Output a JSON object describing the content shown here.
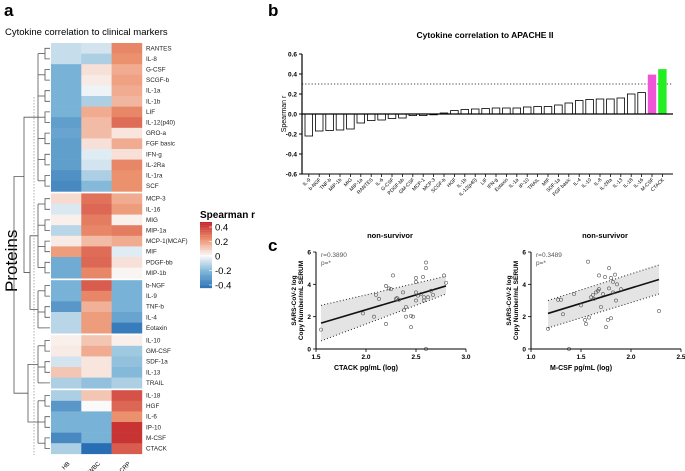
{
  "panels": {
    "a": "a",
    "b": "b",
    "c": "c"
  },
  "heatmap": {
    "title": "Cytokine correlation to clinical markers",
    "ylabel": "Proteins",
    "columns": [
      "HB",
      "WBC",
      "CRP"
    ],
    "legend_title": "Spearman r",
    "legend_ticks": [
      "0.4",
      "0.2",
      "0",
      "-0.2",
      "-0.4"
    ],
    "legend_values": [
      0.4,
      0.2,
      0,
      -0.2,
      -0.4
    ],
    "range": [
      -0.4,
      0.4
    ],
    "group_sizes": [
      14,
      8,
      5,
      5,
      6
    ],
    "rows": [
      {
        "name": "RANTES",
        "values": [
          -0.08,
          -0.06,
          0.22
        ]
      },
      {
        "name": "IL-8",
        "values": [
          -0.08,
          -0.12,
          0.2
        ]
      },
      {
        "name": "G-CSF",
        "values": [
          -0.2,
          0.05,
          0.15
        ]
      },
      {
        "name": "SCGF-b",
        "values": [
          -0.2,
          0.03,
          0.17
        ]
      },
      {
        "name": "IL-1a",
        "values": [
          -0.2,
          -0.02,
          0.15
        ]
      },
      {
        "name": "IL-1b",
        "values": [
          -0.2,
          -0.12,
          0.13
        ]
      },
      {
        "name": "LIF",
        "values": [
          -0.2,
          0.15,
          0.22
        ]
      },
      {
        "name": "IL-12(p40)",
        "values": [
          -0.26,
          0.12,
          0.27
        ]
      },
      {
        "name": "GRO-a",
        "values": [
          -0.24,
          0.12,
          0.04
        ]
      },
      {
        "name": "FGF basic",
        "values": [
          -0.26,
          0.05,
          0.15
        ]
      },
      {
        "name": "IFN-g",
        "values": [
          -0.26,
          -0.04,
          0.05
        ]
      },
      {
        "name": "IL-2Ra",
        "values": [
          -0.26,
          -0.06,
          0.22
        ]
      },
      {
        "name": "IL-1ra",
        "values": [
          -0.3,
          -0.12,
          0.2
        ]
      },
      {
        "name": "SCF",
        "values": [
          -0.32,
          -0.18,
          0.2
        ]
      },
      {
        "name": "MCP-3",
        "values": [
          0.06,
          0.26,
          0.15
        ]
      },
      {
        "name": "IL-16",
        "values": [
          -0.05,
          0.28,
          0.18
        ]
      },
      {
        "name": "MIG",
        "values": [
          0.02,
          0.24,
          0.02
        ]
      },
      {
        "name": "MIP-1a",
        "values": [
          -0.1,
          0.22,
          0.24
        ]
      },
      {
        "name": "MCP-1(MCAF)",
        "values": [
          0.03,
          0.12,
          0.15
        ]
      },
      {
        "name": "MIF",
        "values": [
          0.18,
          0.27,
          -0.04
        ]
      },
      {
        "name": "PDGF-bb",
        "values": [
          -0.22,
          0.28,
          0.05
        ]
      },
      {
        "name": "MIP-1b",
        "values": [
          -0.22,
          0.22,
          0.01
        ]
      },
      {
        "name": "b-NGF",
        "values": [
          -0.2,
          0.3,
          -0.2
        ]
      },
      {
        "name": "IL-9",
        "values": [
          -0.2,
          0.22,
          -0.2
        ]
      },
      {
        "name": "TNF-b",
        "values": [
          -0.28,
          0.14,
          -0.2
        ]
      },
      {
        "name": "IL-4",
        "values": [
          -0.1,
          0.18,
          -0.24
        ]
      },
      {
        "name": "Eotaxin",
        "values": [
          -0.1,
          0.18,
          -0.36
        ]
      },
      {
        "name": "IL-10",
        "values": [
          0.02,
          0.1,
          0.02
        ]
      },
      {
        "name": "GM-CSF",
        "values": [
          0.03,
          0.15,
          -0.14
        ]
      },
      {
        "name": "SDF-1a",
        "values": [
          -0.06,
          0.04,
          -0.16
        ]
      },
      {
        "name": "IL-13",
        "values": [
          0.1,
          0.04,
          -0.18
        ]
      },
      {
        "name": "TRAIL",
        "values": [
          -0.12,
          -0.16,
          -0.12
        ]
      },
      {
        "name": "IL-18",
        "values": [
          -0.12,
          0.1,
          0.32
        ]
      },
      {
        "name": "HGF",
        "values": [
          -0.28,
          0.0,
          0.28
        ]
      },
      {
        "name": "IL-6",
        "values": [
          -0.2,
          -0.2,
          0.2
        ]
      },
      {
        "name": "IP-10",
        "values": [
          -0.2,
          -0.2,
          0.38
        ]
      },
      {
        "name": "M-CSF",
        "values": [
          -0.32,
          -0.2,
          0.38
        ]
      },
      {
        "name": "CTACK",
        "values": [
          -0.12,
          -0.4,
          0.3
        ]
      }
    ]
  },
  "chart_data": [
    {
      "type": "bar",
      "title": "Cytokine correlation to APACHE II",
      "ylabel": "Spearman r",
      "ylim": [
        -0.6,
        0.6
      ],
      "yticks": [
        "0.6",
        "0.4",
        "0.2",
        "0.0",
        "-0.2",
        "-0.4",
        "-0.6"
      ],
      "ytick_values": [
        0.6,
        0.4,
        0.2,
        0,
        -0.2,
        -0.4,
        -0.6
      ],
      "threshold": 0.3,
      "categories": [
        "IL-9",
        "b-NGF",
        "TNF-b",
        "MIP-1b",
        "MIG",
        "MIP-1a",
        "RANTES",
        "IL-6",
        "G-CSF",
        "PDGF-bb",
        "GM-CSF",
        "MCP-1",
        "MCP-3",
        "SCGF-b",
        "HGF",
        "IL-1b",
        "IL-12(p40)",
        "LIF",
        "IFN-g",
        "Eotaxin",
        "IL-1a",
        "IP-10",
        "TRAIL",
        "MIF",
        "SDF-1a",
        "FGF basic",
        "IL-4",
        "IL-10",
        "IL-8",
        "IL-2Ra",
        "IL-13",
        "IL-18",
        "IL-16",
        "M-CSF",
        "CTACK"
      ],
      "values": [
        -0.22,
        -0.17,
        -0.165,
        -0.16,
        -0.15,
        -0.09,
        -0.065,
        -0.06,
        -0.045,
        -0.04,
        -0.015,
        -0.015,
        -0.005,
        0.01,
        0.035,
        0.045,
        0.05,
        0.055,
        0.06,
        0.06,
        0.06,
        0.07,
        0.075,
        0.075,
        0.09,
        0.11,
        0.135,
        0.145,
        0.15,
        0.15,
        0.16,
        0.2,
        0.215,
        0.39,
        0.445
      ],
      "highlight": {
        "M-CSF": "#f055d8",
        "CTACK": "#22ee22"
      }
    },
    {
      "type": "scatter",
      "title": "non-survivor",
      "xlabel": "CTACK pg/mL (log)",
      "ylabel": [
        "SARS-CoV-2 log",
        "Copy Number/mL SERUM"
      ],
      "annotation": [
        "r=0.3890",
        "p=*"
      ],
      "xlim": [
        1.5,
        3.0
      ],
      "ylim": [
        0,
        6
      ],
      "xticks": [
        "1.5",
        "2.0",
        "2.5",
        "3.0"
      ],
      "xtick_values": [
        1.5,
        2.0,
        2.5,
        3.0
      ],
      "yticks": [
        "0",
        "2",
        "4",
        "6"
      ],
      "ytick_values": [
        0,
        2,
        4,
        6
      ],
      "fit": {
        "x": [
          1.55,
          2.8
        ],
        "y": [
          1.6,
          3.9
        ]
      },
      "ci_lower": {
        "x": [
          1.55,
          2.8
        ],
        "y": [
          0.5,
          3.4
        ]
      },
      "ci_upper": {
        "x": [
          1.55,
          2.8
        ],
        "y": [
          2.7,
          4.5
        ]
      },
      "points": [
        [
          1.55,
          1.2
        ],
        [
          1.97,
          2.2
        ],
        [
          2.08,
          2.0
        ],
        [
          2.1,
          3.35
        ],
        [
          2.13,
          3.1
        ],
        [
          2.2,
          1.55
        ],
        [
          2.2,
          3.9
        ],
        [
          2.23,
          3.75
        ],
        [
          2.25,
          3.7
        ],
        [
          2.27,
          4.55
        ],
        [
          2.3,
          3.1
        ],
        [
          2.31,
          3.15
        ],
        [
          2.33,
          3.05
        ],
        [
          2.37,
          3.5
        ],
        [
          2.38,
          2.4
        ],
        [
          2.4,
          2.6
        ],
        [
          2.4,
          2.0
        ],
        [
          2.45,
          2.05
        ],
        [
          2.47,
          2.0
        ],
        [
          2.45,
          1.35
        ],
        [
          2.5,
          4.15
        ],
        [
          2.5,
          4.4
        ],
        [
          2.5,
          3.0
        ],
        [
          2.5,
          3.5
        ],
        [
          2.52,
          3.3
        ],
        [
          2.55,
          3.4
        ],
        [
          2.57,
          4.45
        ],
        [
          2.58,
          3.0
        ],
        [
          2.58,
          3.2
        ],
        [
          2.6,
          5.0
        ],
        [
          2.6,
          5.35
        ],
        [
          2.62,
          3.2
        ],
        [
          2.65,
          3.6
        ],
        [
          2.67,
          3.35
        ],
        [
          2.6,
          0.0
        ],
        [
          2.78,
          4.55
        ],
        [
          2.8,
          4.1
        ]
      ]
    },
    {
      "type": "scatter",
      "title": "non-survivor",
      "xlabel": "M-CSF pg/mL (log)",
      "ylabel": [
        "SARS-CoV-2 log",
        "Copy Number/mL SERUM"
      ],
      "annotation": [
        "r=0.3489",
        "p=*"
      ],
      "xlim": [
        1.0,
        2.5
      ],
      "ylim": [
        0,
        6
      ],
      "xticks": [
        "1.0",
        "1.5",
        "2.0",
        "2.5"
      ],
      "xtick_values": [
        1.0,
        1.5,
        2.0,
        2.5
      ],
      "yticks": [
        "0",
        "2",
        "4",
        "6"
      ],
      "ytick_values": [
        0,
        2,
        4,
        6
      ],
      "fit": {
        "x": [
          1.17,
          2.28
        ],
        "y": [
          2.2,
          4.3
        ]
      },
      "ci_lower": {
        "x": [
          1.17,
          2.28
        ],
        "y": [
          1.3,
          3.4
        ]
      },
      "ci_upper": {
        "x": [
          1.17,
          2.28
        ],
        "y": [
          3.0,
          5.2
        ]
      },
      "points": [
        [
          1.17,
          1.25
        ],
        [
          1.27,
          3.05
        ],
        [
          1.3,
          3.05
        ],
        [
          1.32,
          2.15
        ],
        [
          1.38,
          0
        ],
        [
          1.43,
          3.4
        ],
        [
          1.5,
          2.7
        ],
        [
          1.54,
          1.8
        ],
        [
          1.55,
          1.55
        ],
        [
          1.57,
          5.4
        ],
        [
          1.58,
          1.95
        ],
        [
          1.6,
          3.2
        ],
        [
          1.62,
          3.35
        ],
        [
          1.63,
          3.1
        ],
        [
          1.65,
          3.5
        ],
        [
          1.67,
          3.6
        ],
        [
          1.68,
          3.7
        ],
        [
          1.68,
          4.55
        ],
        [
          1.7,
          2.6
        ],
        [
          1.72,
          3.4
        ],
        [
          1.74,
          4.45
        ],
        [
          1.75,
          1.35
        ],
        [
          1.77,
          1.8
        ],
        [
          1.78,
          3.75
        ],
        [
          1.78,
          5.0
        ],
        [
          1.8,
          4.4
        ],
        [
          1.8,
          1.9
        ],
        [
          1.82,
          3.5
        ],
        [
          1.82,
          4.15
        ],
        [
          1.84,
          4.6
        ],
        [
          1.85,
          3.0
        ],
        [
          1.86,
          4.0
        ],
        [
          1.9,
          3.7
        ],
        [
          2.28,
          2.35
        ]
      ]
    }
  ]
}
